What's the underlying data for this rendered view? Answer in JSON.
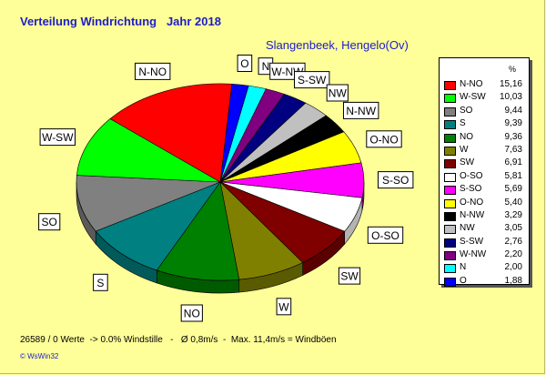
{
  "header": {
    "title": "Verteilung Windrichtung   Jahr 2018",
    "station": "Slangenbeek, Hengelo(Ov)"
  },
  "footer": {
    "summary": "26589 / 0 Werte  -> 0.0% Windstille   -   Ø 0,8m/s  -  Max. 11,4m/s = Windböen",
    "credit": "© WsWin32"
  },
  "chart_data": {
    "type": "pie",
    "title": "Verteilung Windrichtung   Jahr 2018",
    "subtitle": "Slangenbeek, Hengelo(Ov)",
    "legend_header": "%",
    "legend_placement": "right",
    "slices": [
      {
        "label": "N-NO",
        "value": 15.16,
        "value_text": "15,16",
        "color": "#ff0000"
      },
      {
        "label": "W-SW",
        "value": 10.03,
        "value_text": "10,03",
        "color": "#00ff00"
      },
      {
        "label": "SO",
        "value": 9.44,
        "value_text": "9,44",
        "color": "#808080"
      },
      {
        "label": "S",
        "value": 9.39,
        "value_text": "9,39",
        "color": "#008080"
      },
      {
        "label": "NO",
        "value": 9.36,
        "value_text": "9,36",
        "color": "#008000"
      },
      {
        "label": "W",
        "value": 7.63,
        "value_text": "7,63",
        "color": "#808000"
      },
      {
        "label": "SW",
        "value": 6.91,
        "value_text": "6,91",
        "color": "#800000"
      },
      {
        "label": "O-SO",
        "value": 5.81,
        "value_text": "5,81",
        "color": "#ffffff"
      },
      {
        "label": "S-SO",
        "value": 5.69,
        "value_text": "5,69",
        "color": "#ff00ff"
      },
      {
        "label": "O-NO",
        "value": 5.4,
        "value_text": "5,40",
        "color": "#ffff00"
      },
      {
        "label": "N-NW",
        "value": 3.29,
        "value_text": "3,29",
        "color": "#000000"
      },
      {
        "label": "NW",
        "value": 3.05,
        "value_text": "3,05",
        "color": "#c0c0c0"
      },
      {
        "label": "S-SW",
        "value": 2.76,
        "value_text": "2,76",
        "color": "#000080"
      },
      {
        "label": "W-NW",
        "value": 2.2,
        "value_text": "2,20",
        "color": "#800080"
      },
      {
        "label": "N",
        "value": 2.0,
        "value_text": "2,00",
        "color": "#00ffff"
      },
      {
        "label": "O",
        "value": 1.88,
        "value_text": "1,88",
        "color": "#0000ff"
      }
    ],
    "pie_order": [
      "O",
      "N",
      "W-NW",
      "S-SW",
      "NW",
      "N-NW",
      "O-NO",
      "S-SO",
      "O-SO",
      "SW",
      "W",
      "NO",
      "S",
      "SO",
      "W-SW",
      "N-NO"
    ]
  }
}
